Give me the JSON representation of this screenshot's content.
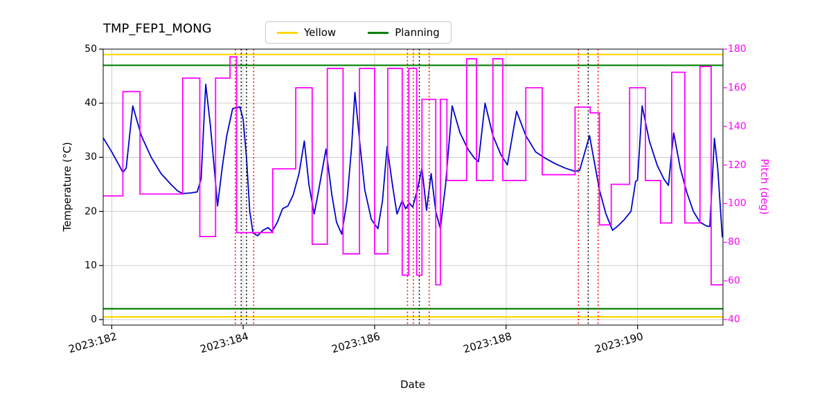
{
  "chart_data": {
    "type": "line",
    "title": "TMP_FEP1_MONG",
    "xlabel": "Date",
    "grid": true,
    "legend": {
      "position": "upper center",
      "items": [
        {
          "label": "Yellow",
          "color": "#ffd700"
        },
        {
          "label": "Planning",
          "color": "#008000"
        }
      ]
    },
    "x_axis": {
      "min": 181.87,
      "max": 191.3,
      "ticks": [
        182,
        184,
        186,
        188,
        190
      ],
      "tick_labels": [
        "2023:182",
        "2023:184",
        "2023:186",
        "2023:188",
        "2023:190"
      ]
    },
    "y_left": {
      "label": "Temperature (°C)",
      "min": -1.02,
      "max": 50,
      "ticks": [
        0,
        10,
        20,
        30,
        40,
        50
      ],
      "color": "#000000"
    },
    "y_right": {
      "label": "Pitch (deg)",
      "min": 37.14,
      "max": 180,
      "ticks": [
        40,
        60,
        80,
        100,
        120,
        140,
        160,
        180
      ],
      "color": "#ff00ff"
    },
    "series": [
      {
        "name": "temperature",
        "type": "line",
        "axis": "left",
        "color": "#0000cd",
        "x": [
          181.87,
          182.0,
          182.1,
          182.17,
          182.22,
          182.32,
          182.45,
          182.6,
          182.75,
          182.9,
          183.0,
          183.08,
          183.2,
          183.3,
          183.36,
          183.43,
          183.5,
          183.56,
          183.61,
          183.68,
          183.75,
          183.84,
          183.95,
          184.0,
          184.05,
          184.1,
          184.15,
          184.22,
          184.3,
          184.38,
          184.44,
          184.52,
          184.6,
          184.68,
          184.76,
          184.85,
          184.93,
          185.0,
          185.08,
          185.15,
          185.26,
          185.35,
          185.42,
          185.5,
          185.58,
          185.65,
          185.7,
          185.78,
          185.85,
          185.95,
          186.05,
          186.12,
          186.19,
          186.27,
          186.34,
          186.42,
          186.47,
          186.53,
          186.58,
          186.65,
          186.72,
          186.79,
          186.86,
          186.93,
          187.0,
          187.08,
          187.18,
          187.3,
          187.42,
          187.52,
          187.58,
          187.68,
          187.8,
          187.92,
          188.02,
          188.16,
          188.3,
          188.45,
          188.6,
          188.75,
          188.9,
          189.05,
          189.12,
          189.27,
          189.33,
          189.42,
          189.52,
          189.62,
          189.7,
          189.8,
          189.9,
          189.97,
          190.0,
          190.07,
          190.18,
          190.3,
          190.4,
          190.47,
          190.55,
          190.65,
          190.75,
          190.85,
          190.95,
          191.05,
          191.1,
          191.17,
          191.22,
          191.29
        ],
        "y": [
          33.6,
          31.0,
          28.8,
          27.2,
          28.0,
          39.5,
          34.0,
          30.0,
          27.0,
          25.0,
          23.8,
          23.3,
          23.4,
          23.6,
          26.0,
          43.5,
          36.0,
          28.0,
          21.0,
          28.0,
          34.0,
          39.0,
          39.3,
          37.0,
          30.0,
          20.0,
          16.0,
          15.5,
          16.5,
          17.0,
          16.3,
          18.0,
          20.5,
          21.0,
          23.0,
          27.0,
          33.0,
          25.0,
          19.5,
          24.0,
          31.5,
          23.0,
          18.0,
          15.8,
          22.0,
          32.0,
          42.0,
          32.0,
          24.0,
          18.5,
          16.8,
          22.0,
          32.0,
          25.0,
          19.5,
          22.0,
          20.5,
          21.5,
          20.8,
          24.0,
          28.0,
          20.2,
          27.0,
          20.0,
          16.8,
          25.0,
          39.5,
          34.5,
          31.5,
          29.8,
          29.2,
          40.0,
          34.0,
          30.5,
          28.6,
          38.5,
          34.0,
          31.0,
          29.8,
          28.8,
          28.0,
          27.4,
          27.6,
          34.0,
          30.0,
          24.0,
          19.5,
          16.5,
          17.3,
          18.5,
          20.0,
          25.5,
          25.8,
          39.5,
          33.0,
          28.5,
          26.0,
          24.8,
          34.5,
          28.0,
          23.5,
          20.0,
          18.0,
          17.3,
          17.2,
          33.5,
          28.0,
          15.2
        ]
      },
      {
        "name": "pitch",
        "type": "step",
        "axis": "right",
        "color": "#ff00ff",
        "x": [
          181.87,
          182.17,
          182.43,
          183.08,
          183.34,
          183.58,
          183.8,
          183.9,
          184.45,
          184.8,
          185.05,
          185.28,
          185.52,
          185.77,
          186.0,
          186.2,
          186.42,
          186.52,
          186.64,
          186.72,
          186.93,
          187.0,
          187.1,
          187.4,
          187.55,
          187.8,
          187.95,
          188.3,
          188.55,
          189.05,
          189.28,
          189.42,
          189.6,
          189.88,
          190.12,
          190.35,
          190.52,
          190.72,
          190.95,
          191.12,
          191.3
        ],
        "y": [
          104,
          158,
          105,
          165,
          83,
          165,
          176,
          85,
          118,
          160,
          79,
          170,
          74,
          170,
          74,
          170,
          63,
          170,
          63,
          154,
          58,
          154,
          112,
          175,
          112,
          175,
          112,
          160,
          115,
          150,
          147,
          89,
          110,
          160,
          112,
          90,
          168,
          90,
          171,
          58,
          58
        ]
      }
    ],
    "hlines": [
      {
        "y": 49,
        "color": "#ffd700",
        "label": "Yellow"
      },
      {
        "y": 0.5,
        "color": "#ffd700",
        "label": "Yellow"
      },
      {
        "y": 47,
        "color": "#008000",
        "label": "Planning"
      },
      {
        "y": 2,
        "color": "#008000",
        "label": "Planning"
      }
    ],
    "vlines": [
      {
        "x": 183.88,
        "color": "#ff0000"
      },
      {
        "x": 183.97,
        "color": "#000000"
      },
      {
        "x": 184.05,
        "color": "#000000"
      },
      {
        "x": 184.16,
        "color": "#ff0000"
      },
      {
        "x": 186.5,
        "color": "#ff0000"
      },
      {
        "x": 186.59,
        "color": "#ff0000"
      },
      {
        "x": 186.68,
        "color": "#000000"
      },
      {
        "x": 186.83,
        "color": "#ff0000"
      },
      {
        "x": 189.1,
        "color": "#ff0000"
      },
      {
        "x": 189.25,
        "color": "#000000"
      },
      {
        "x": 189.4,
        "color": "#ff0000"
      }
    ]
  }
}
